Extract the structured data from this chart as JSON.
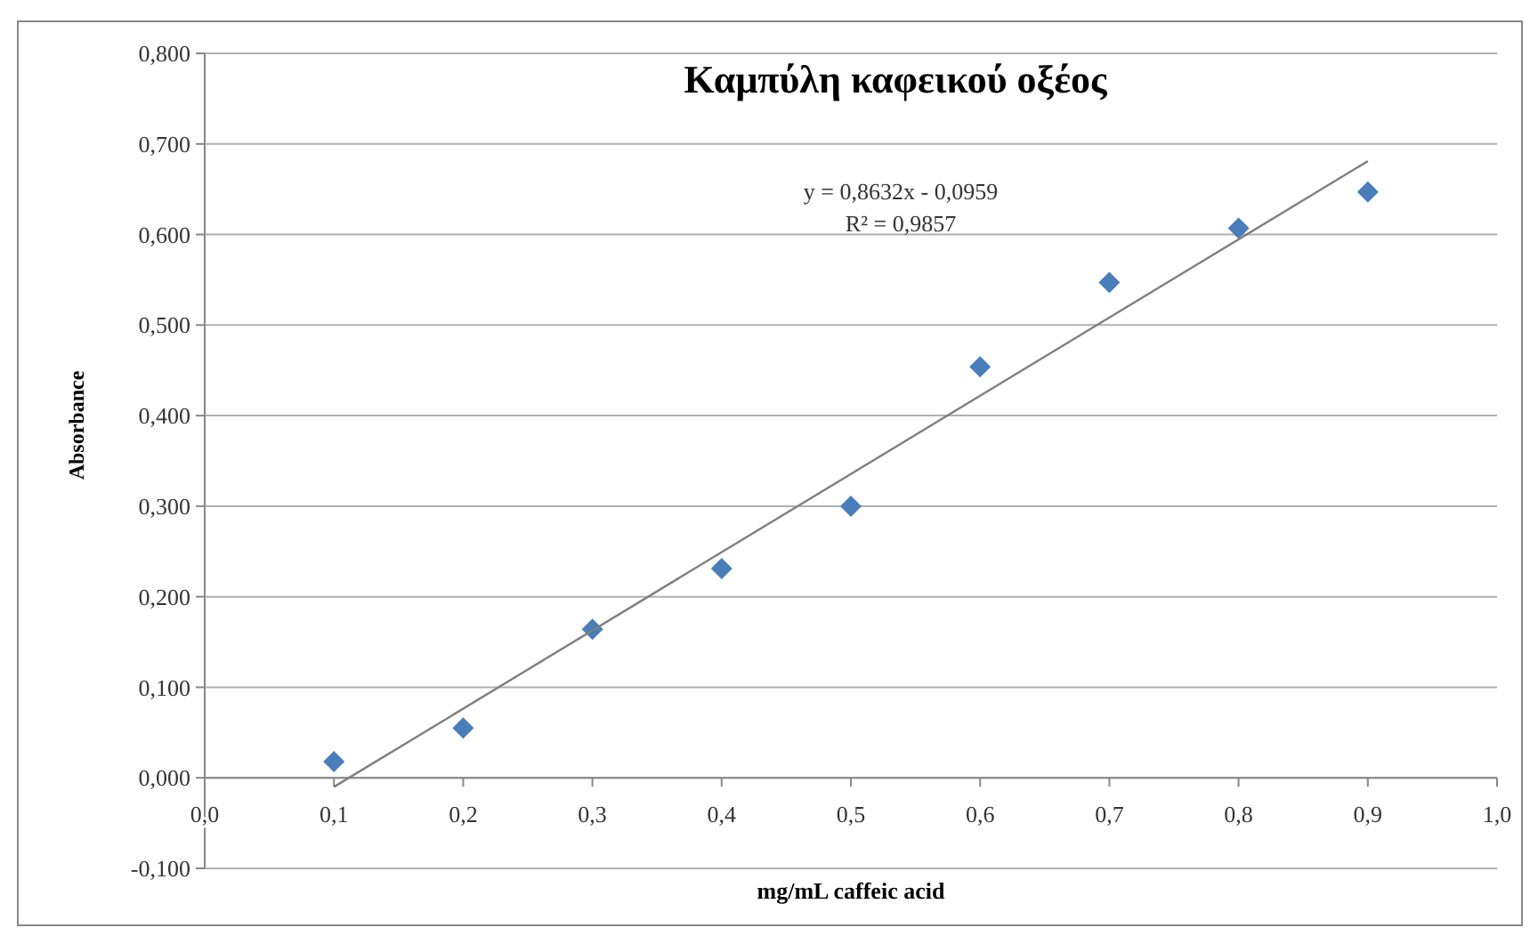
{
  "chart_data": {
    "type": "scatter",
    "title": "Καμπύλη καφεικού οξέος",
    "xlabel": "mg/mL caffeic acid",
    "ylabel": "Absorbance",
    "x": [
      0.1,
      0.2,
      0.3,
      0.4,
      0.5,
      0.6,
      0.7,
      0.8,
      0.9
    ],
    "series": [
      {
        "color": "#4a7ebb",
        "marker": "diamond",
        "values": [
          0.018,
          0.055,
          0.164,
          0.231,
          0.3,
          0.454,
          0.547,
          0.607,
          0.647
        ]
      },
      {
        "type": "line",
        "color": "#7f7f7f",
        "marker": "none",
        "x": [
          0.1,
          0.9
        ],
        "values": [
          -0.01,
          0.681
        ]
      }
    ],
    "annotations": [
      "y = 0,8632x - 0,0959",
      "R² = 0,9857"
    ],
    "xlim": [
      0,
      1
    ],
    "ylim": [
      -0.1,
      0.8
    ],
    "xticks": [
      {
        "value": 0,
        "label": "0,0"
      },
      {
        "value": 0.1,
        "label": "0,1"
      },
      {
        "value": 0.2,
        "label": "0,2"
      },
      {
        "value": 0.3,
        "label": "0,3"
      },
      {
        "value": 0.4,
        "label": "0,4"
      },
      {
        "value": 0.5,
        "label": "0,5"
      },
      {
        "value": 0.6,
        "label": "0,6"
      },
      {
        "value": 0.7,
        "label": "0,7"
      },
      {
        "value": 0.8,
        "label": "0,8"
      },
      {
        "value": 0.9,
        "label": "0,9"
      },
      {
        "value": 1,
        "label": "1,0"
      }
    ],
    "yticks": [
      {
        "value": -0.1,
        "label": "-0,100"
      },
      {
        "value": 0,
        "label": "0,000"
      },
      {
        "value": 0.1,
        "label": "0,100"
      },
      {
        "value": 0.2,
        "label": "0,200"
      },
      {
        "value": 0.3,
        "label": "0,300"
      },
      {
        "value": 0.4,
        "label": "0,400"
      },
      {
        "value": 0.5,
        "label": "0,500"
      },
      {
        "value": 0.6,
        "label": "0,600"
      },
      {
        "value": 0.7,
        "label": "0,700"
      },
      {
        "value": 0.8,
        "label": "0,800"
      }
    ],
    "grid": "y"
  }
}
